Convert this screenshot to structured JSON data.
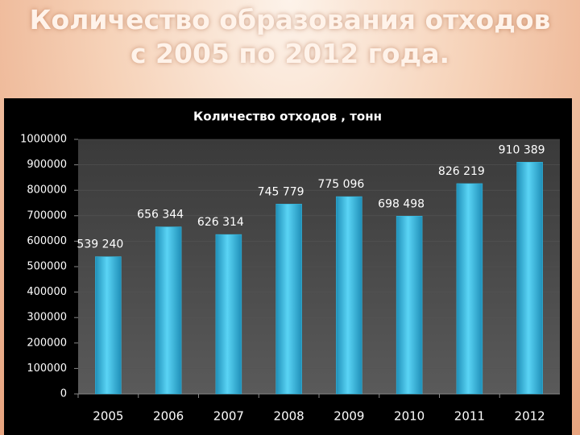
{
  "slide_title": [
    "Количество образования отходов",
    "с 2005 по 2012 года."
  ],
  "chart_data": {
    "type": "bar",
    "title": "Количество отходов , тонн",
    "categories": [
      "2005",
      "2006",
      "2007",
      "2008",
      "2009",
      "2010",
      "2011",
      "2012"
    ],
    "values": [
      539240,
      656344,
      626314,
      745779,
      775096,
      698498,
      826219,
      910389
    ],
    "value_labels": [
      "539 240",
      "656 344",
      "626 314",
      "745 779",
      "775 096",
      "698 498",
      "826 219",
      "910 389"
    ],
    "color": "#35c0e8",
    "ylim": [
      0,
      1000000
    ],
    "yticks": [
      0,
      100000,
      200000,
      300000,
      400000,
      500000,
      600000,
      700000,
      800000,
      900000,
      1000000
    ],
    "grid": true
  }
}
